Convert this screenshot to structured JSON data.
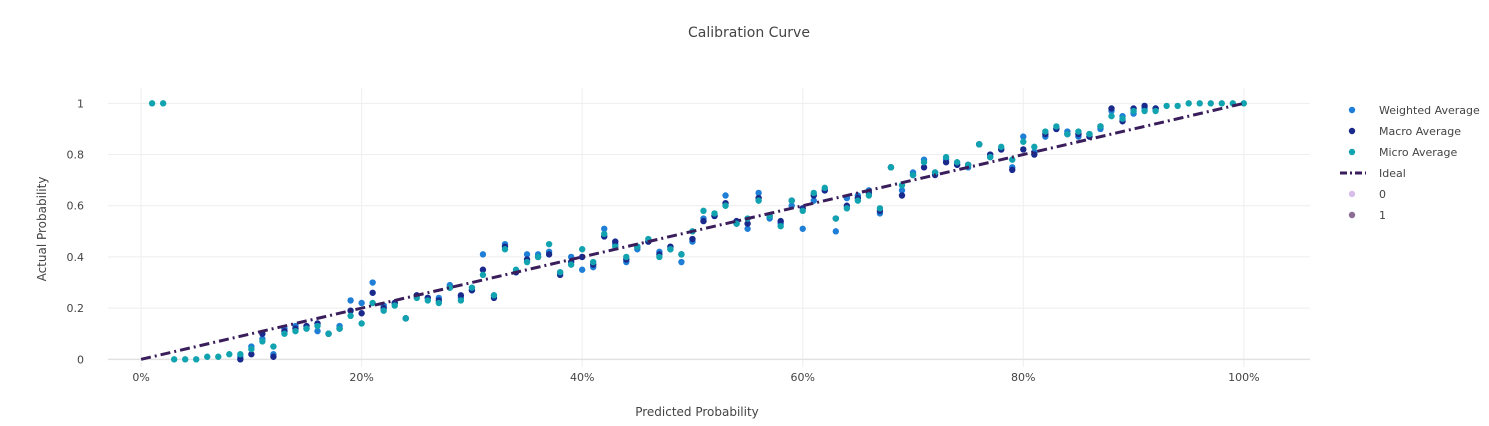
{
  "chart_data": {
    "type": "scatter",
    "title": "Calibration Curve",
    "xlabel": "Predicted Probability",
    "ylabel": "Actual Probability",
    "xlim": [
      -0.03,
      1.06
    ],
    "ylim": [
      -0.03,
      1.06
    ],
    "x_ticks": [
      0,
      0.2,
      0.4,
      0.6,
      0.8,
      1.0
    ],
    "x_tick_labels": [
      "0%",
      "20%",
      "40%",
      "60%",
      "80%",
      "100%"
    ],
    "y_ticks": [
      0,
      0.2,
      0.4,
      0.6,
      0.8,
      1
    ],
    "y_tick_labels": [
      "0",
      "0.2",
      "0.4",
      "0.6",
      "0.8",
      "1"
    ],
    "grid": true,
    "legend_position": "right",
    "series": [
      {
        "name": "Weighted Average",
        "kind": "markers",
        "color": "#1f7fd6",
        "x": [
          0.09,
          0.1,
          0.11,
          0.12,
          0.13,
          0.14,
          0.15,
          0.16,
          0.17,
          0.18,
          0.19,
          0.2,
          0.21,
          0.22,
          0.23,
          0.24,
          0.25,
          0.26,
          0.27,
          0.28,
          0.29,
          0.3,
          0.31,
          0.32,
          0.33,
          0.34,
          0.35,
          0.36,
          0.37,
          0.38,
          0.39,
          0.4,
          0.41,
          0.42,
          0.43,
          0.44,
          0.45,
          0.46,
          0.47,
          0.48,
          0.49,
          0.5,
          0.51,
          0.52,
          0.53,
          0.54,
          0.55,
          0.56,
          0.57,
          0.58,
          0.59,
          0.6,
          0.61,
          0.62,
          0.63,
          0.64,
          0.65,
          0.66,
          0.67,
          0.68,
          0.69,
          0.7,
          0.71,
          0.72,
          0.73,
          0.74,
          0.75,
          0.76,
          0.77,
          0.78,
          0.79,
          0.8,
          0.81,
          0.82,
          0.83,
          0.84,
          0.85,
          0.86,
          0.87,
          0.88,
          0.89,
          0.9,
          0.91,
          0.92
        ],
        "y": [
          0.01,
          0.05,
          0.08,
          0.02,
          0.12,
          0.13,
          0.12,
          0.11,
          0.1,
          0.13,
          0.23,
          0.22,
          0.3,
          0.21,
          0.22,
          0.16,
          0.25,
          0.24,
          0.24,
          0.29,
          0.24,
          0.27,
          0.41,
          0.25,
          0.45,
          0.34,
          0.41,
          0.41,
          0.42,
          0.34,
          0.4,
          0.35,
          0.36,
          0.51,
          0.45,
          0.38,
          0.43,
          0.46,
          0.42,
          0.43,
          0.38,
          0.46,
          0.55,
          0.56,
          0.64,
          0.53,
          0.51,
          0.65,
          0.55,
          0.53,
          0.6,
          0.51,
          0.62,
          0.66,
          0.5,
          0.63,
          0.64,
          0.66,
          0.57,
          0.75,
          0.66,
          0.73,
          0.78,
          0.73,
          0.78,
          0.76,
          0.75,
          0.84,
          0.79,
          0.82,
          0.75,
          0.87,
          0.81,
          0.87,
          0.9,
          0.89,
          0.87,
          0.88,
          0.9,
          0.97,
          0.95,
          0.96,
          0.98,
          0.98
        ]
      },
      {
        "name": "Macro Average",
        "kind": "markers",
        "color": "#1a2a8c",
        "x": [
          0.09,
          0.1,
          0.11,
          0.12,
          0.13,
          0.14,
          0.15,
          0.16,
          0.17,
          0.18,
          0.19,
          0.2,
          0.21,
          0.22,
          0.23,
          0.24,
          0.25,
          0.26,
          0.27,
          0.28,
          0.29,
          0.3,
          0.31,
          0.32,
          0.33,
          0.34,
          0.35,
          0.36,
          0.37,
          0.38,
          0.39,
          0.4,
          0.41,
          0.42,
          0.43,
          0.44,
          0.45,
          0.46,
          0.47,
          0.48,
          0.49,
          0.5,
          0.51,
          0.52,
          0.53,
          0.54,
          0.55,
          0.56,
          0.57,
          0.58,
          0.59,
          0.6,
          0.61,
          0.62,
          0.63,
          0.64,
          0.65,
          0.66,
          0.67,
          0.68,
          0.69,
          0.7,
          0.71,
          0.72,
          0.73,
          0.74,
          0.75,
          0.76,
          0.77,
          0.78,
          0.79,
          0.8,
          0.81,
          0.82,
          0.83,
          0.84,
          0.85,
          0.86,
          0.87,
          0.88,
          0.89,
          0.9,
          0.91,
          0.92
        ],
        "y": [
          0.0,
          0.02,
          0.1,
          0.01,
          0.11,
          0.12,
          0.13,
          0.14,
          0.1,
          0.12,
          0.19,
          0.18,
          0.26,
          0.2,
          0.22,
          0.16,
          0.25,
          0.24,
          0.23,
          0.28,
          0.25,
          0.27,
          0.35,
          0.24,
          0.44,
          0.34,
          0.39,
          0.4,
          0.41,
          0.33,
          0.38,
          0.4,
          0.37,
          0.48,
          0.46,
          0.39,
          0.44,
          0.46,
          0.41,
          0.44,
          0.41,
          0.47,
          0.54,
          0.56,
          0.61,
          0.54,
          0.53,
          0.63,
          0.56,
          0.54,
          0.62,
          0.59,
          0.64,
          0.66,
          0.55,
          0.6,
          0.63,
          0.65,
          0.58,
          0.75,
          0.64,
          0.72,
          0.75,
          0.72,
          0.77,
          0.76,
          0.76,
          0.84,
          0.8,
          0.82,
          0.74,
          0.82,
          0.8,
          0.88,
          0.9,
          0.88,
          0.88,
          0.87,
          0.91,
          0.98,
          0.93,
          0.98,
          0.99,
          0.98
        ]
      },
      {
        "name": "Micro Average",
        "kind": "markers",
        "color": "#12a3b0",
        "x": [
          0.01,
          0.02,
          0.03,
          0.04,
          0.05,
          0.06,
          0.07,
          0.08,
          0.09,
          0.1,
          0.11,
          0.12,
          0.13,
          0.14,
          0.15,
          0.16,
          0.17,
          0.18,
          0.19,
          0.2,
          0.21,
          0.22,
          0.23,
          0.24,
          0.25,
          0.26,
          0.27,
          0.28,
          0.29,
          0.3,
          0.31,
          0.32,
          0.33,
          0.34,
          0.35,
          0.36,
          0.37,
          0.38,
          0.39,
          0.4,
          0.41,
          0.42,
          0.43,
          0.44,
          0.45,
          0.46,
          0.47,
          0.48,
          0.49,
          0.5,
          0.51,
          0.52,
          0.53,
          0.54,
          0.55,
          0.56,
          0.57,
          0.58,
          0.59,
          0.6,
          0.61,
          0.62,
          0.63,
          0.64,
          0.65,
          0.66,
          0.67,
          0.68,
          0.69,
          0.7,
          0.71,
          0.72,
          0.73,
          0.74,
          0.75,
          0.76,
          0.77,
          0.78,
          0.79,
          0.8,
          0.81,
          0.82,
          0.83,
          0.84,
          0.85,
          0.86,
          0.87,
          0.88,
          0.89,
          0.9,
          0.91,
          0.92,
          0.93,
          0.94,
          0.95,
          0.96,
          0.97,
          0.98,
          0.99,
          1.0
        ],
        "y": [
          1,
          1,
          0.0,
          0.0,
          0.0,
          0.01,
          0.01,
          0.02,
          0.02,
          0.04,
          0.07,
          0.05,
          0.1,
          0.11,
          0.12,
          0.13,
          0.1,
          0.12,
          0.17,
          0.14,
          0.22,
          0.19,
          0.21,
          0.16,
          0.24,
          0.23,
          0.22,
          0.28,
          0.23,
          0.28,
          0.33,
          0.25,
          0.43,
          0.35,
          0.38,
          0.4,
          0.45,
          0.34,
          0.37,
          0.43,
          0.38,
          0.49,
          0.44,
          0.4,
          0.44,
          0.47,
          0.4,
          0.43,
          0.41,
          0.5,
          0.58,
          0.57,
          0.6,
          0.53,
          0.55,
          0.62,
          0.56,
          0.52,
          0.62,
          0.58,
          0.65,
          0.67,
          0.55,
          0.59,
          0.62,
          0.64,
          0.59,
          0.75,
          0.68,
          0.72,
          0.77,
          0.73,
          0.79,
          0.77,
          0.76,
          0.84,
          0.79,
          0.83,
          0.78,
          0.85,
          0.83,
          0.89,
          0.91,
          0.88,
          0.89,
          0.88,
          0.91,
          0.95,
          0.94,
          0.97,
          0.97,
          0.97,
          0.99,
          0.99,
          1,
          1,
          1,
          1,
          1,
          1
        ]
      },
      {
        "name": "Ideal",
        "kind": "line",
        "color": "#3a1e5c",
        "dash": "dashdot",
        "x": [
          0,
          1
        ],
        "y": [
          0,
          1
        ]
      },
      {
        "name": "0",
        "kind": "markers",
        "color": "#d7bde8",
        "x": [],
        "y": []
      },
      {
        "name": "1",
        "kind": "markers",
        "color": "#8c6d96",
        "x": [],
        "y": []
      }
    ]
  },
  "colors": {
    "grid": "#eeeeee",
    "zeroline": "#e2e2e2",
    "text": "#444444"
  }
}
